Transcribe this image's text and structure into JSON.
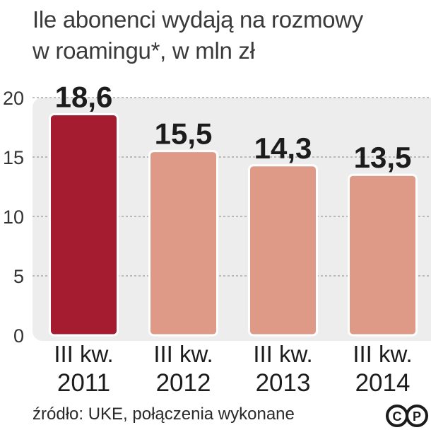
{
  "title_lines": [
    "Ile abonenci wydają na rozmowy",
    "w roamingu*, w mln zł"
  ],
  "source": "źródło: UKE, połączenia wykonane",
  "logo": {
    "icon": "copyright-cp-icon",
    "letters": [
      "C",
      "P"
    ]
  },
  "colors": {
    "highlight": "#a51c30",
    "bar": "#df9a87",
    "panel": "#ededed",
    "grid": "#9a9a9a"
  },
  "chart_data": {
    "type": "bar",
    "categories": [
      [
        "III kw.",
        "2011"
      ],
      [
        "III kw.",
        "2012"
      ],
      [
        "III kw.",
        "2013"
      ],
      [
        "III kw.",
        "2014"
      ]
    ],
    "values": [
      18.6,
      15.5,
      14.3,
      13.5
    ],
    "value_labels": [
      "18,6",
      "15,5",
      "14,3",
      "13,5"
    ],
    "highlight_index": 0,
    "ylim": [
      0,
      20
    ],
    "yticks": [
      0,
      5,
      10,
      15,
      20
    ],
    "grid": true
  }
}
